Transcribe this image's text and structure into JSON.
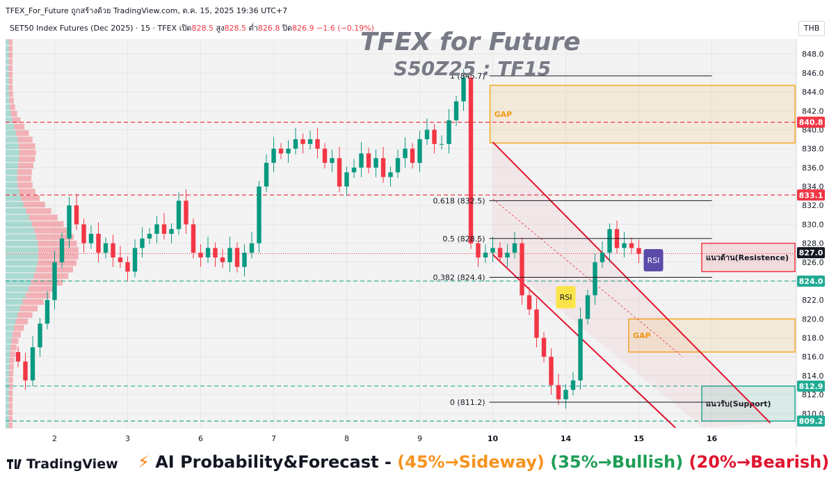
{
  "header": {
    "publish_line": "TFEX_For_Future ถูกสร้างด้วย TradingView.com, ต.ค. 15, 2025 19:36 UTC+7",
    "symbol": "SET50 Index Futures (Dec 2025) · 15 · TFEX",
    "open_label": "เปิด",
    "open_value": "828.5",
    "high_label": "สูง",
    "high_value": "828.5",
    "low_label": "ต่ำ",
    "low_value": "826.8",
    "close_label": "ปิด",
    "close_value": "826.9",
    "change": "−1.6 (−0.19%)",
    "currency": "THB"
  },
  "watermark": {
    "title": "TFEX for Future",
    "subtitle": "S50Z25 : TF15"
  },
  "footer": {
    "brand": "TradingView",
    "forecast_title": "AI Probability&Forecast - ",
    "sideway": "(45%→Sideway)",
    "bullish": "(35%→Bullish)",
    "bearish": "(20%→Bearish)"
  },
  "colors": {
    "up": "#089981",
    "down": "#f23645",
    "gap": "#f5a623",
    "channel": "#e0142f",
    "support": "#22ab94",
    "accent": "#2962ff"
  },
  "chart_data": {
    "type": "candlestick",
    "yaxis": {
      "ylim": [
        808.4,
        849.6
      ],
      "ticks": [
        810,
        812,
        814,
        816,
        818,
        820,
        822,
        824,
        826,
        828,
        830,
        832,
        834,
        836,
        838,
        840,
        842,
        844,
        846,
        848
      ]
    },
    "xaxis": {
      "ticks": [
        {
          "label": "2",
          "i": 5
        },
        {
          "label": "3",
          "i": 15
        },
        {
          "label": "6",
          "i": 25
        },
        {
          "label": "7",
          "i": 35
        },
        {
          "label": "8",
          "i": 45
        },
        {
          "label": "9",
          "i": 55
        },
        {
          "label": "10",
          "i": 65,
          "bold": true
        },
        {
          "label": "14",
          "i": 75,
          "bold": true
        },
        {
          "label": "15",
          "i": 85,
          "bold": true
        },
        {
          "label": "16",
          "i": 95,
          "bold": true
        }
      ]
    },
    "closes": [
      815.5,
      813.5,
      817,
      819.5,
      822,
      826,
      828.5,
      832,
      830,
      828,
      829,
      827,
      828,
      826.5,
      826,
      825,
      827.5,
      828.5,
      829,
      830,
      829,
      829.5,
      832.5,
      830,
      827,
      826.5,
      827.5,
      826.5,
      826,
      827.5,
      825.5,
      827,
      828,
      834,
      836.5,
      838,
      837.5,
      838,
      839,
      838.5,
      839,
      838,
      836.5,
      837,
      834,
      835.5,
      836,
      837.5,
      836,
      837,
      835,
      835.5,
      837,
      838,
      836.5,
      839,
      840,
      838.5,
      838.5,
      841,
      843,
      845.5,
      828,
      826.5,
      827,
      827.5,
      826.5,
      827,
      828,
      822.5,
      821,
      818,
      816,
      813,
      811.5,
      812.5,
      813.5,
      820,
      822.5,
      826,
      827,
      829.5,
      827.5,
      828,
      827.5,
      826.9
    ],
    "price_labels": [
      {
        "value": 840.8,
        "text": "840.8",
        "bg": "#f23645",
        "fg": "#ffffff"
      },
      {
        "value": 833.1,
        "text": "833.1",
        "bg": "#f23645",
        "fg": "#ffffff"
      },
      {
        "value": 827.0,
        "text": "827.0",
        "bg": "#131722",
        "fg": "#ffffff"
      },
      {
        "value": 824.0,
        "text": "824.0",
        "bg": "#22ab94",
        "fg": "#ffffff"
      },
      {
        "value": 812.9,
        "text": "812.9",
        "bg": "#22ab94",
        "fg": "#ffffff"
      },
      {
        "value": 809.2,
        "text": "809.2",
        "bg": "#22ab94",
        "fg": "#ffffff"
      }
    ],
    "hlines": [
      {
        "value": 840.8,
        "color": "#f23645",
        "dash": true
      },
      {
        "value": 833.1,
        "color": "#f23645",
        "dash": true
      },
      {
        "value": 824.0,
        "color": "#22ab94",
        "dash": true
      },
      {
        "value": 812.9,
        "color": "#22ab94",
        "dash": true
      },
      {
        "value": 809.2,
        "color": "#22ab94",
        "dash": true
      },
      {
        "value": 826.9,
        "color": "#f23645",
        "dot": true
      }
    ],
    "fib": [
      {
        "value": 845.7,
        "label": "1 (845.7)"
      },
      {
        "value": 832.5,
        "label": "0.618 (832.5)"
      },
      {
        "value": 828.5,
        "label": "0.5 (828.5)"
      },
      {
        "value": 824.4,
        "label": "0.382 (824.4)"
      },
      {
        "value": 811.2,
        "label": "0 (811.2)"
      }
    ],
    "zones": [
      {
        "label": "GAP",
        "top": 844.7,
        "bottom": 838.6,
        "start_i": 65,
        "color": "#f5a623"
      },
      {
        "label": "GAP",
        "top": 820.0,
        "bottom": 816.5,
        "start_i": 84,
        "color": "#f5a623"
      },
      {
        "label": "แนวต้าน(Resistence)",
        "top": 828.0,
        "bottom": 825.0,
        "start_i": 94,
        "color": "#f23645"
      },
      {
        "label": "แนวรับ(Support)",
        "top": 812.9,
        "bottom": 809.2,
        "start_i": 94,
        "color": "#22ab94"
      }
    ],
    "rsi_tags": [
      {
        "text": "RSI",
        "i": 75,
        "value": 822.3,
        "bg": "#fbe44a",
        "fg": "#131722"
      },
      {
        "text": "RSI",
        "i": 87,
        "value": 826.2,
        "bg": "#5b4aa8",
        "fg": "#ffffff"
      }
    ],
    "channel": {
      "upper": [
        [
          65,
          838.7
        ],
        [
          103,
          809
        ]
      ],
      "lower": [
        [
          65,
          826.8
        ],
        [
          90,
          808.5
        ]
      ],
      "mid": [
        [
          65,
          832.7
        ],
        [
          91,
          816
        ]
      ]
    }
  }
}
